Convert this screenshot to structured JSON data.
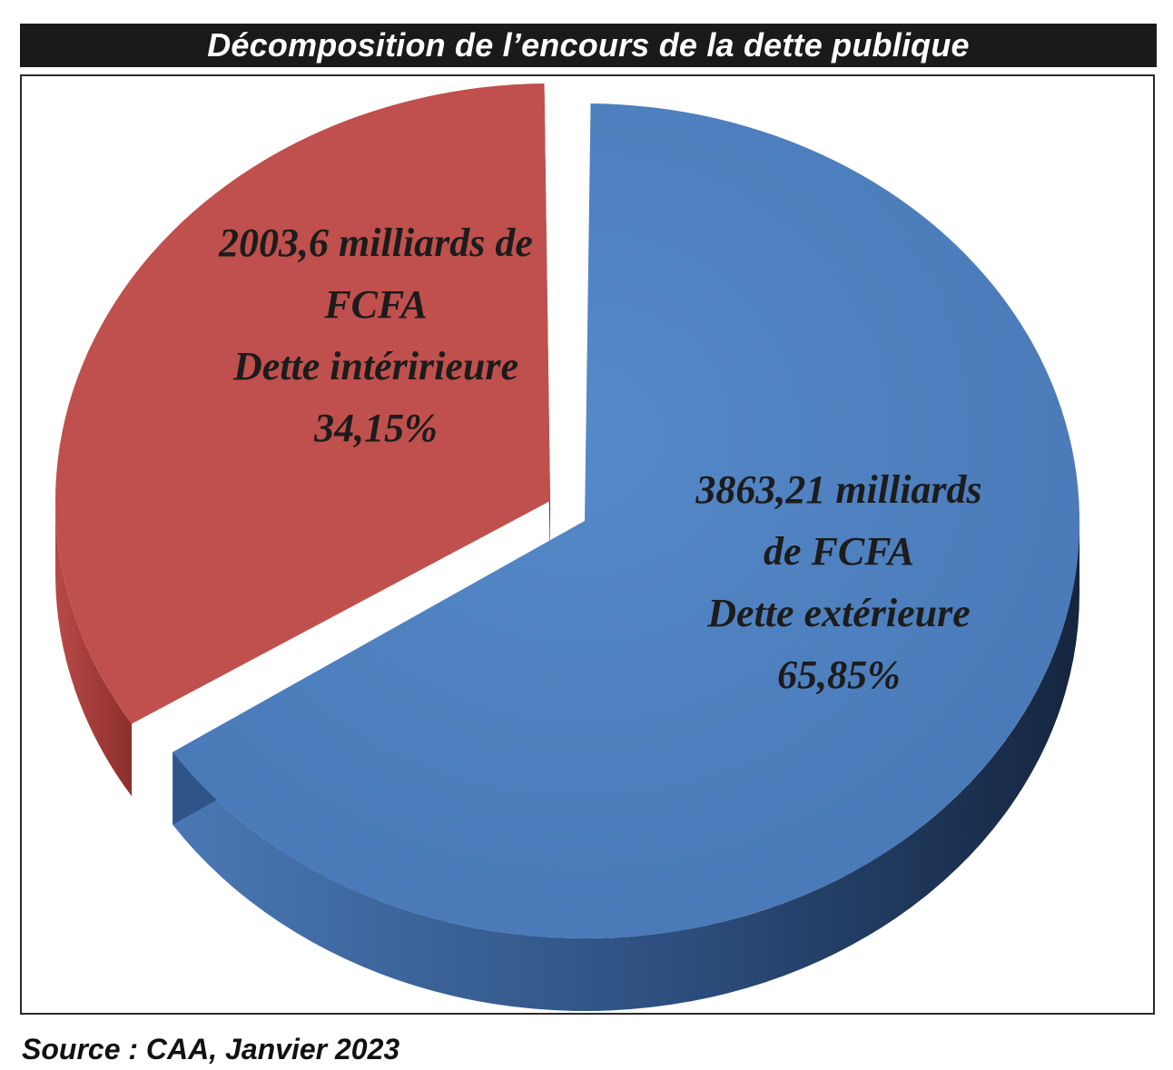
{
  "title": "Décomposition de l’encours de la dette publique",
  "source": "Source : CAA, Janvier 2023",
  "chart_data": {
    "type": "pie",
    "style": "3d-exploded",
    "series": [
      {
        "category": "Dette extérieure",
        "value": 3863.21,
        "unit": "milliards de FCFA",
        "percent": 65.85,
        "color": "#4f81bd",
        "label_lines": [
          "3863,21 milliards",
          "de FCFA",
          "Dette extérieure",
          "65,85%"
        ]
      },
      {
        "category": "Dette intéririeure",
        "value": 2003.6,
        "unit": "milliards de FCFA",
        "percent": 34.15,
        "color": "#c0504d",
        "label_lines": [
          "2003,6 milliards de",
          "FCFA",
          "Dette intéririeure",
          "34,15%"
        ]
      }
    ]
  }
}
